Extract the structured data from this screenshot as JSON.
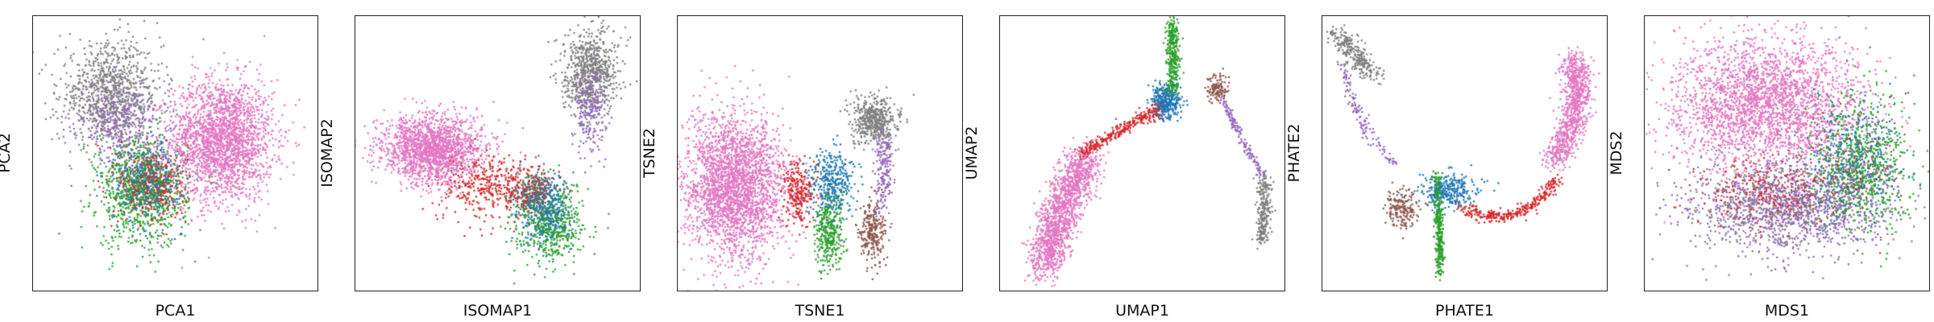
{
  "figure": {
    "colors": {
      "pink": "#e377c2",
      "gray": "#7f7f7f",
      "purple": "#9467bd",
      "green": "#2ca02c",
      "blue": "#1f77b4",
      "red": "#d62728",
      "brown": "#8c564b"
    },
    "panels": [
      {
        "xlabel": "PCA1",
        "ylabel": "PCA2"
      },
      {
        "xlabel": "ISOMAP1",
        "ylabel": "ISOMAP2"
      },
      {
        "xlabel": "TSNE1",
        "ylabel": "TSNE2"
      },
      {
        "xlabel": "UMAP1",
        "ylabel": "UMAP2"
      },
      {
        "xlabel": "PHATE1",
        "ylabel": "PHATE2"
      },
      {
        "xlabel": "MDS1",
        "ylabel": "MDS2"
      }
    ]
  },
  "chart_data": [
    {
      "type": "scatter",
      "title": "",
      "xlabel": "PCA1",
      "ylabel": "PCA2",
      "xlim": [
        0,
        1
      ],
      "ylim": [
        0,
        1
      ],
      "grid": false,
      "ticks": "hidden",
      "series": [
        {
          "color": "#e377c2",
          "clusters": [
            {
              "center": [
                0.66,
                0.55
              ],
              "spread": [
                0.09,
                0.11
              ],
              "count": 2200
            }
          ]
        },
        {
          "color": "#7f7f7f",
          "clusters": [
            {
              "center": [
                0.27,
                0.72
              ],
              "spread": [
                0.09,
                0.09
              ],
              "count": 900
            }
          ]
        },
        {
          "color": "#9467bd",
          "clusters": [
            {
              "center": [
                0.3,
                0.62
              ],
              "spread": [
                0.07,
                0.07
              ],
              "count": 400
            }
          ]
        },
        {
          "color": "#2ca02c",
          "clusters": [
            {
              "center": [
                0.38,
                0.36
              ],
              "spread": [
                0.08,
                0.1
              ],
              "count": 800
            }
          ]
        },
        {
          "color": "#1f77b4",
          "clusters": [
            {
              "center": [
                0.4,
                0.4
              ],
              "spread": [
                0.06,
                0.07
              ],
              "count": 400
            }
          ]
        },
        {
          "color": "#d62728",
          "clusters": [
            {
              "center": [
                0.42,
                0.38
              ],
              "spread": [
                0.06,
                0.07
              ],
              "count": 300
            }
          ]
        },
        {
          "color": "#8c564b",
          "clusters": [
            {
              "center": [
                0.4,
                0.42
              ],
              "spread": [
                0.05,
                0.06
              ],
              "count": 150
            }
          ]
        }
      ]
    },
    {
      "type": "scatter",
      "title": "",
      "xlabel": "ISOMAP1",
      "ylabel": "ISOMAP2",
      "xlim": [
        0,
        1
      ],
      "ylim": [
        0,
        1
      ],
      "grid": false,
      "ticks": "hidden",
      "series": [
        {
          "color": "#e377c2",
          "clusters": [
            {
              "center": [
                0.27,
                0.52
              ],
              "spread": [
                0.09,
                0.06
              ],
              "count": 1700
            }
          ]
        },
        {
          "color": "#7f7f7f",
          "clusters": [
            {
              "center": [
                0.82,
                0.8
              ],
              "spread": [
                0.05,
                0.08
              ],
              "count": 700
            }
          ]
        },
        {
          "color": "#9467bd",
          "clusters": [
            {
              "center": [
                0.82,
                0.66
              ],
              "spread": [
                0.03,
                0.08
              ],
              "count": 250
            }
          ]
        },
        {
          "color": "#d62728",
          "clusters": [
            {
              "center": [
                0.46,
                0.38
              ],
              "spread": [
                0.09,
                0.06
              ],
              "count": 400
            }
          ]
        },
        {
          "color": "#2ca02c",
          "clusters": [
            {
              "center": [
                0.68,
                0.24
              ],
              "spread": [
                0.06,
                0.07
              ],
              "count": 500
            }
          ]
        },
        {
          "color": "#1f77b4",
          "clusters": [
            {
              "center": [
                0.66,
                0.3
              ],
              "spread": [
                0.05,
                0.06
              ],
              "count": 400
            }
          ]
        },
        {
          "color": "#8c564b",
          "clusters": [
            {
              "center": [
                0.62,
                0.36
              ],
              "spread": [
                0.04,
                0.04
              ],
              "count": 250
            }
          ]
        }
      ]
    },
    {
      "type": "scatter",
      "title": "",
      "xlabel": "TSNE1",
      "ylabel": "TSNE2",
      "xlim": [
        0,
        1
      ],
      "ylim": [
        0,
        1
      ],
      "grid": false,
      "ticks": "hidden",
      "series": [
        {
          "color": "#e377c2",
          "clusters": [
            {
              "center": [
                0.2,
                0.38
              ],
              "spread": [
                0.09,
                0.13
              ],
              "count": 2600
            }
          ]
        },
        {
          "color": "#d62728",
          "clusters": [
            {
              "center": [
                0.42,
                0.36
              ],
              "spread": [
                0.025,
                0.06
              ],
              "count": 250
            }
          ]
        },
        {
          "color": "#1f77b4",
          "clusters": [
            {
              "center": [
                0.54,
                0.4
              ],
              "spread": [
                0.04,
                0.06
              ],
              "count": 350
            }
          ]
        },
        {
          "color": "#2ca02c",
          "clusters": [
            {
              "center": [
                0.53,
                0.22
              ],
              "spread": [
                0.025,
                0.07
              ],
              "count": 350
            }
          ]
        },
        {
          "color": "#7f7f7f",
          "clusters": [
            {
              "center": [
                0.69,
                0.62
              ],
              "spread": [
                0.04,
                0.04
              ],
              "count": 500
            }
          ]
        },
        {
          "color": "#9467bd",
          "clusters": [
            {
              "center": [
                0.72,
                0.45
              ],
              "spread": [
                0.015,
                0.08
              ],
              "count": 180
            }
          ]
        },
        {
          "color": "#8c564b",
          "clusters": [
            {
              "center": [
                0.68,
                0.22
              ],
              "spread": [
                0.025,
                0.06
              ],
              "count": 260
            }
          ]
        }
      ]
    },
    {
      "type": "scatter",
      "title": "",
      "xlabel": "UMAP1",
      "ylabel": "UMAP2",
      "xlim": [
        0,
        1
      ],
      "ylim": [
        0,
        1
      ],
      "grid": false,
      "ticks": "hidden",
      "series": [
        {
          "color": "#e377c2",
          "curve": [
            [
              0.15,
              0.08
            ],
            [
              0.2,
              0.3
            ],
            [
              0.3,
              0.48
            ]
          ],
          "width": 0.035,
          "count": 1500
        },
        {
          "color": "#d62728",
          "curve": [
            [
              0.28,
              0.5
            ],
            [
              0.44,
              0.61
            ],
            [
              0.56,
              0.66
            ]
          ],
          "width": 0.012,
          "count": 300
        },
        {
          "color": "#1f77b4",
          "clusters": [
            {
              "center": [
                0.58,
                0.69
              ],
              "spread": [
                0.025,
                0.03
              ],
              "count": 350
            }
          ]
        },
        {
          "color": "#2ca02c",
          "curve": [
            [
              0.6,
              0.72
            ],
            [
              0.61,
              0.85
            ],
            [
              0.6,
              0.98
            ]
          ],
          "width": 0.012,
          "count": 350
        },
        {
          "color": "#8c564b",
          "clusters": [
            {
              "center": [
                0.76,
                0.74
              ],
              "spread": [
                0.02,
                0.025
              ],
              "count": 120
            }
          ]
        },
        {
          "color": "#9467bd",
          "curve": [
            [
              0.78,
              0.7
            ],
            [
              0.84,
              0.55
            ],
            [
              0.92,
              0.42
            ]
          ],
          "width": 0.007,
          "count": 150
        },
        {
          "color": "#7f7f7f",
          "curve": [
            [
              0.92,
              0.42
            ],
            [
              0.93,
              0.3
            ],
            [
              0.91,
              0.18
            ]
          ],
          "width": 0.012,
          "count": 250
        }
      ]
    },
    {
      "type": "scatter",
      "title": "",
      "xlabel": "PHATE1",
      "ylabel": "PHATE2",
      "xlim": [
        0,
        1
      ],
      "ylim": [
        0,
        1
      ],
      "grid": false,
      "ticks": "hidden",
      "series": [
        {
          "color": "#7f7f7f",
          "curve": [
            [
              0.05,
              0.94
            ],
            [
              0.11,
              0.86
            ],
            [
              0.18,
              0.78
            ]
          ],
          "width": 0.02,
          "count": 280
        },
        {
          "color": "#9467bd",
          "curve": [
            [
              0.07,
              0.82
            ],
            [
              0.11,
              0.6
            ],
            [
              0.25,
              0.47
            ]
          ],
          "width": 0.01,
          "count": 130
        },
        {
          "color": "#8c564b",
          "clusters": [
            {
              "center": [
                0.28,
                0.3
              ],
              "spread": [
                0.03,
                0.035
              ],
              "count": 180
            }
          ]
        },
        {
          "color": "#2ca02c",
          "curve": [
            [
              0.4,
              0.42
            ],
            [
              0.41,
              0.25
            ],
            [
              0.41,
              0.06
            ]
          ],
          "width": 0.008,
          "count": 350
        },
        {
          "color": "#1f77b4",
          "clusters": [
            {
              "center": [
                0.44,
                0.37
              ],
              "spread": [
                0.05,
                0.03
              ],
              "count": 300
            }
          ]
        },
        {
          "color": "#d62728",
          "curve": [
            [
              0.48,
              0.31
            ],
            [
              0.68,
              0.2
            ],
            [
              0.83,
              0.42
            ]
          ],
          "width": 0.012,
          "count": 320
        },
        {
          "color": "#e377c2",
          "curve": [
            [
              0.81,
              0.47
            ],
            [
              0.92,
              0.66
            ],
            [
              0.88,
              0.84
            ]
          ],
          "width": 0.025,
          "count": 900
        }
      ]
    },
    {
      "type": "scatter",
      "title": "",
      "xlabel": "MDS1",
      "ylabel": "MDS2",
      "xlim": [
        0,
        1
      ],
      "ylim": [
        0,
        1
      ],
      "grid": false,
      "ticks": "hidden",
      "series": [
        {
          "color": "#9467bd",
          "clusters": [
            {
              "center": [
                0.52,
                0.3
              ],
              "spread": [
                0.17,
                0.08
              ],
              "count": 1000
            }
          ]
        },
        {
          "color": "#7f7f7f",
          "clusters": [
            {
              "center": [
                0.46,
                0.32
              ],
              "spread": [
                0.15,
                0.08
              ],
              "count": 500
            }
          ]
        },
        {
          "color": "#d62728",
          "clusters": [
            {
              "center": [
                0.45,
                0.37
              ],
              "spread": [
                0.14,
                0.06
              ],
              "count": 300
            }
          ]
        },
        {
          "color": "#2ca02c",
          "clusters": [
            {
              "center": [
                0.76,
                0.46
              ],
              "spread": [
                0.09,
                0.13
              ],
              "count": 700
            }
          ]
        },
        {
          "color": "#1f77b4",
          "clusters": [
            {
              "center": [
                0.72,
                0.48
              ],
              "spread": [
                0.08,
                0.11
              ],
              "count": 400
            }
          ]
        },
        {
          "color": "#8c564b",
          "clusters": [
            {
              "center": [
                0.74,
                0.45
              ],
              "spread": [
                0.07,
                0.1
              ],
              "count": 200
            }
          ]
        },
        {
          "color": "#e377c2",
          "clusters": [
            {
              "center": [
                0.42,
                0.68
              ],
              "spread": [
                0.17,
                0.12
              ],
              "count": 2600
            }
          ]
        }
      ]
    }
  ]
}
